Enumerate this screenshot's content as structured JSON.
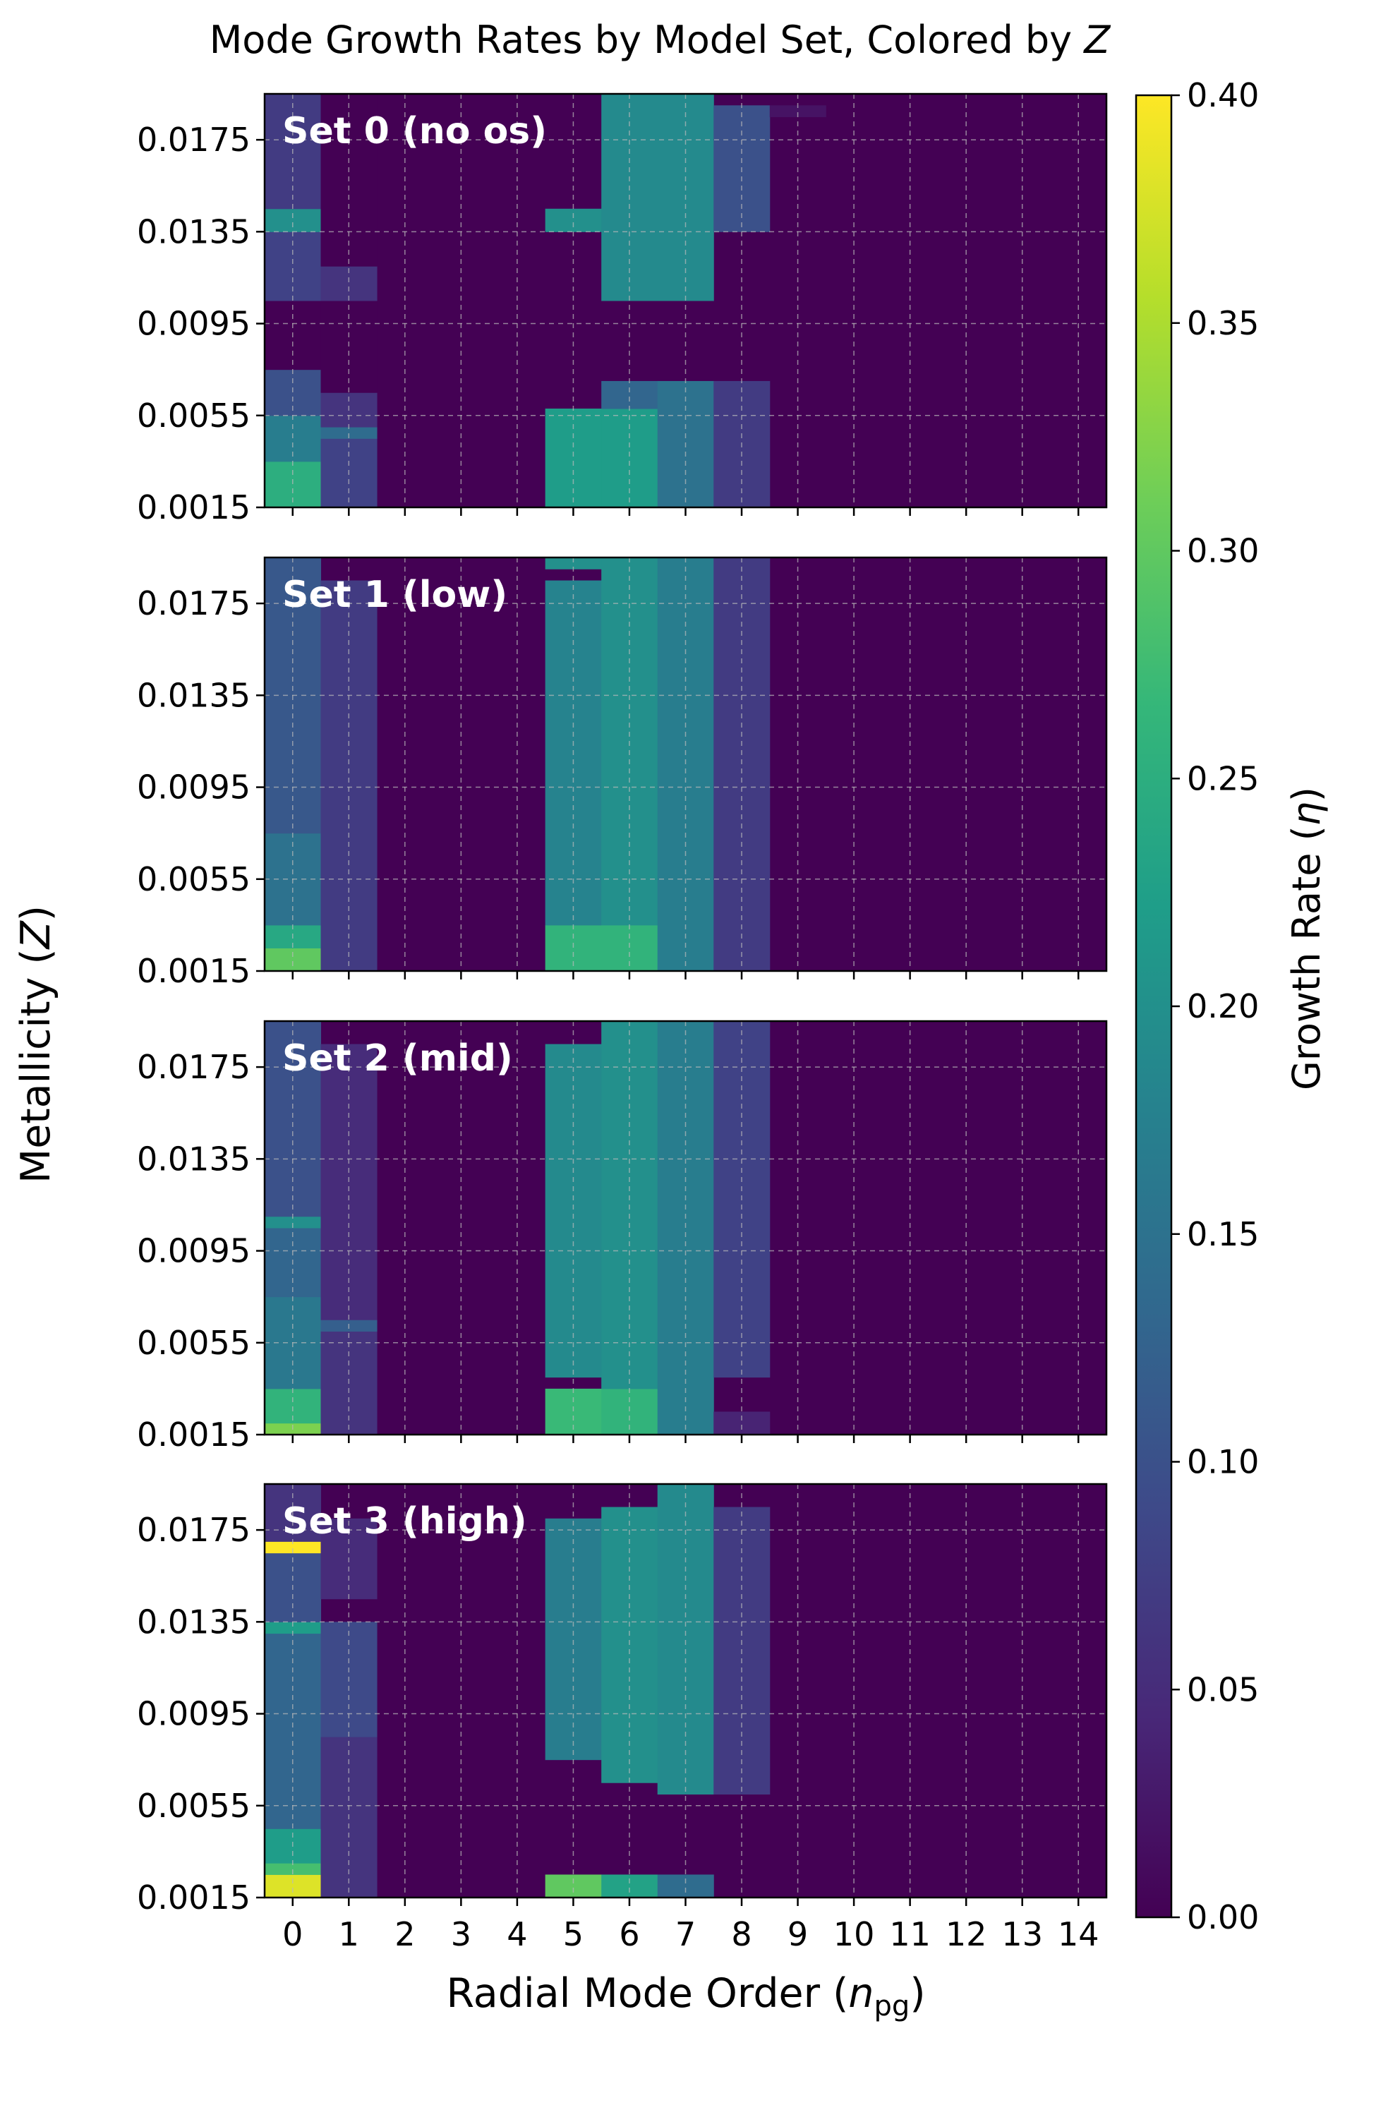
{
  "title": "Mode Growth Rates by Model Set, Colored by Z",
  "title_plain": "Mode Growth Rates by Model Set, Colored by ",
  "title_italic": "Z",
  "ylabel": "Metallicity (Z)",
  "ylabel_plain": "Metallicity (",
  "ylabel_italic": "Z",
  "ylabel_close": ")",
  "xlabel": "Radial Mode Order (n_pg)",
  "xlabel_plain": "Radial Mode Order (",
  "xlabel_italic": "n",
  "xlabel_sub": "pg",
  "xlabel_close": ")",
  "colorbar_label": "Growth Rate (η)",
  "colorbar_label_plain": "Growth Rate (",
  "colorbar_label_italic": "η",
  "colorbar_label_close": ")",
  "colors": {
    "viridis_stops": [
      "#440154",
      "#482878",
      "#3e4989",
      "#31688e",
      "#26828e",
      "#1f9e89",
      "#35b779",
      "#6ece58",
      "#b5de2b",
      "#fde725"
    ],
    "grid": "#bbbbbb",
    "panel_label": "#ffffff"
  },
  "chart_data": {
    "type": "heatmap",
    "x": [
      0,
      1,
      2,
      3,
      4,
      5,
      6,
      7,
      8,
      9,
      10,
      11,
      12,
      13,
      14
    ],
    "xticklabels": [
      "0",
      "1",
      "2",
      "3",
      "4",
      "5",
      "6",
      "7",
      "8",
      "9",
      "10",
      "11",
      "12",
      "13",
      "14"
    ],
    "yticks": [
      0.0015,
      0.0055,
      0.0095,
      0.0135,
      0.0175
    ],
    "yticklabels": [
      "0.0015",
      "0.0055",
      "0.0095",
      "0.0135",
      "0.0175"
    ],
    "ylim": [
      0.0015,
      0.0195
    ],
    "colorbar": {
      "vmin": 0.0,
      "vmax": 0.4,
      "ticks": [
        0.0,
        0.05,
        0.1,
        0.15,
        0.2,
        0.25,
        0.3,
        0.35,
        0.4
      ],
      "ticklabels": [
        "0.00",
        "0.05",
        "0.10",
        "0.15",
        "0.20",
        "0.25",
        "0.30",
        "0.35",
        "0.40"
      ]
    },
    "panels": [
      {
        "label": "Set 0 (no os)",
        "segments": [
          {
            "n": 0,
            "z_from": 0.0015,
            "z_to": 0.0035,
            "eta": 0.25
          },
          {
            "n": 0,
            "z_from": 0.0035,
            "z_to": 0.0055,
            "eta": 0.17
          },
          {
            "n": 0,
            "z_from": 0.0055,
            "z_to": 0.0075,
            "eta": 0.1
          },
          {
            "n": 0,
            "z_from": 0.0075,
            "z_to": 0.0105,
            "eta": 0.0
          },
          {
            "n": 0,
            "z_from": 0.0105,
            "z_to": 0.0135,
            "eta": 0.08
          },
          {
            "n": 0,
            "z_from": 0.0135,
            "z_to": 0.0145,
            "eta": 0.2
          },
          {
            "n": 0,
            "z_from": 0.0145,
            "z_to": 0.0195,
            "eta": 0.07
          },
          {
            "n": 1,
            "z_from": 0.0015,
            "z_to": 0.0045,
            "eta": 0.08
          },
          {
            "n": 1,
            "z_from": 0.0045,
            "z_to": 0.005,
            "eta": 0.14
          },
          {
            "n": 1,
            "z_from": 0.005,
            "z_to": 0.0065,
            "eta": 0.06
          },
          {
            "n": 1,
            "z_from": 0.0065,
            "z_to": 0.0105,
            "eta": 0.0
          },
          {
            "n": 1,
            "z_from": 0.0105,
            "z_to": 0.012,
            "eta": 0.06
          },
          {
            "n": 1,
            "z_from": 0.012,
            "z_to": 0.0195,
            "eta": 0.0
          },
          {
            "n": 5,
            "z_from": 0.0015,
            "z_to": 0.0058,
            "eta": 0.22
          },
          {
            "n": 5,
            "z_from": 0.0135,
            "z_to": 0.0145,
            "eta": 0.2
          },
          {
            "n": 6,
            "z_from": 0.0015,
            "z_to": 0.0058,
            "eta": 0.22
          },
          {
            "n": 6,
            "z_from": 0.0058,
            "z_to": 0.007,
            "eta": 0.13
          },
          {
            "n": 6,
            "z_from": 0.0105,
            "z_to": 0.0195,
            "eta": 0.19
          },
          {
            "n": 7,
            "z_from": 0.0015,
            "z_to": 0.007,
            "eta": 0.15
          },
          {
            "n": 7,
            "z_from": 0.0105,
            "z_to": 0.0195,
            "eta": 0.19
          },
          {
            "n": 8,
            "z_from": 0.0015,
            "z_to": 0.007,
            "eta": 0.07
          },
          {
            "n": 8,
            "z_from": 0.0135,
            "z_to": 0.019,
            "eta": 0.1
          },
          {
            "n": 9,
            "z_from": 0.0185,
            "z_to": 0.019,
            "eta": 0.02
          }
        ]
      },
      {
        "label": "Set 1 (low)",
        "segments": [
          {
            "n": 0,
            "z_from": 0.0015,
            "z_to": 0.0025,
            "eta": 0.3
          },
          {
            "n": 0,
            "z_from": 0.0025,
            "z_to": 0.0035,
            "eta": 0.24
          },
          {
            "n": 0,
            "z_from": 0.0035,
            "z_to": 0.0075,
            "eta": 0.15
          },
          {
            "n": 0,
            "z_from": 0.0075,
            "z_to": 0.0195,
            "eta": 0.11
          },
          {
            "n": 1,
            "z_from": 0.0015,
            "z_to": 0.0185,
            "eta": 0.07
          },
          {
            "n": 5,
            "z_from": 0.0015,
            "z_to": 0.0035,
            "eta": 0.26
          },
          {
            "n": 5,
            "z_from": 0.0035,
            "z_to": 0.0185,
            "eta": 0.18
          },
          {
            "n": 5,
            "z_from": 0.019,
            "z_to": 0.0195,
            "eta": 0.2
          },
          {
            "n": 6,
            "z_from": 0.0015,
            "z_to": 0.0035,
            "eta": 0.26
          },
          {
            "n": 6,
            "z_from": 0.0035,
            "z_to": 0.0195,
            "eta": 0.2
          },
          {
            "n": 7,
            "z_from": 0.0015,
            "z_to": 0.0195,
            "eta": 0.17
          },
          {
            "n": 8,
            "z_from": 0.0015,
            "z_to": 0.0195,
            "eta": 0.07
          }
        ]
      },
      {
        "label": "Set 2 (mid)",
        "segments": [
          {
            "n": 0,
            "z_from": 0.0015,
            "z_to": 0.002,
            "eta": 0.32
          },
          {
            "n": 0,
            "z_from": 0.002,
            "z_to": 0.0035,
            "eta": 0.26
          },
          {
            "n": 0,
            "z_from": 0.0035,
            "z_to": 0.0075,
            "eta": 0.16
          },
          {
            "n": 0,
            "z_from": 0.0075,
            "z_to": 0.0105,
            "eta": 0.13
          },
          {
            "n": 0,
            "z_from": 0.0105,
            "z_to": 0.011,
            "eta": 0.2
          },
          {
            "n": 0,
            "z_from": 0.011,
            "z_to": 0.0195,
            "eta": 0.1
          },
          {
            "n": 1,
            "z_from": 0.0015,
            "z_to": 0.006,
            "eta": 0.06
          },
          {
            "n": 1,
            "z_from": 0.006,
            "z_to": 0.0065,
            "eta": 0.12
          },
          {
            "n": 1,
            "z_from": 0.0065,
            "z_to": 0.0185,
            "eta": 0.05
          },
          {
            "n": 5,
            "z_from": 0.0015,
            "z_to": 0.0035,
            "eta": 0.27
          },
          {
            "n": 5,
            "z_from": 0.004,
            "z_to": 0.0185,
            "eta": 0.19
          },
          {
            "n": 6,
            "z_from": 0.0015,
            "z_to": 0.0035,
            "eta": 0.26
          },
          {
            "n": 6,
            "z_from": 0.0035,
            "z_to": 0.0195,
            "eta": 0.2
          },
          {
            "n": 7,
            "z_from": 0.0015,
            "z_to": 0.0195,
            "eta": 0.17
          },
          {
            "n": 8,
            "z_from": 0.0015,
            "z_to": 0.0025,
            "eta": 0.04
          },
          {
            "n": 8,
            "z_from": 0.004,
            "z_to": 0.0195,
            "eta": 0.08
          }
        ]
      },
      {
        "label": "Set 3 (high)",
        "segments": [
          {
            "n": 0,
            "z_from": 0.0015,
            "z_to": 0.0025,
            "eta": 0.38
          },
          {
            "n": 0,
            "z_from": 0.0025,
            "z_to": 0.003,
            "eta": 0.28
          },
          {
            "n": 0,
            "z_from": 0.003,
            "z_to": 0.0045,
            "eta": 0.22
          },
          {
            "n": 0,
            "z_from": 0.0045,
            "z_to": 0.013,
            "eta": 0.13
          },
          {
            "n": 0,
            "z_from": 0.013,
            "z_to": 0.0135,
            "eta": 0.22
          },
          {
            "n": 0,
            "z_from": 0.0135,
            "z_to": 0.0165,
            "eta": 0.1
          },
          {
            "n": 0,
            "z_from": 0.0165,
            "z_to": 0.017,
            "eta": 0.4
          },
          {
            "n": 0,
            "z_from": 0.017,
            "z_to": 0.0195,
            "eta": 0.06
          },
          {
            "n": 1,
            "z_from": 0.0015,
            "z_to": 0.0085,
            "eta": 0.06
          },
          {
            "n": 1,
            "z_from": 0.0085,
            "z_to": 0.0135,
            "eta": 0.09
          },
          {
            "n": 1,
            "z_from": 0.0145,
            "z_to": 0.018,
            "eta": 0.05
          },
          {
            "n": 5,
            "z_from": 0.0015,
            "z_to": 0.0025,
            "eta": 0.3
          },
          {
            "n": 5,
            "z_from": 0.0075,
            "z_to": 0.018,
            "eta": 0.17
          },
          {
            "n": 6,
            "z_from": 0.0015,
            "z_to": 0.0025,
            "eta": 0.23
          },
          {
            "n": 6,
            "z_from": 0.0065,
            "z_to": 0.0185,
            "eta": 0.2
          },
          {
            "n": 7,
            "z_from": 0.0015,
            "z_to": 0.0025,
            "eta": 0.14
          },
          {
            "n": 7,
            "z_from": 0.006,
            "z_to": 0.0195,
            "eta": 0.19
          },
          {
            "n": 8,
            "z_from": 0.006,
            "z_to": 0.0185,
            "eta": 0.07
          }
        ]
      }
    ]
  }
}
